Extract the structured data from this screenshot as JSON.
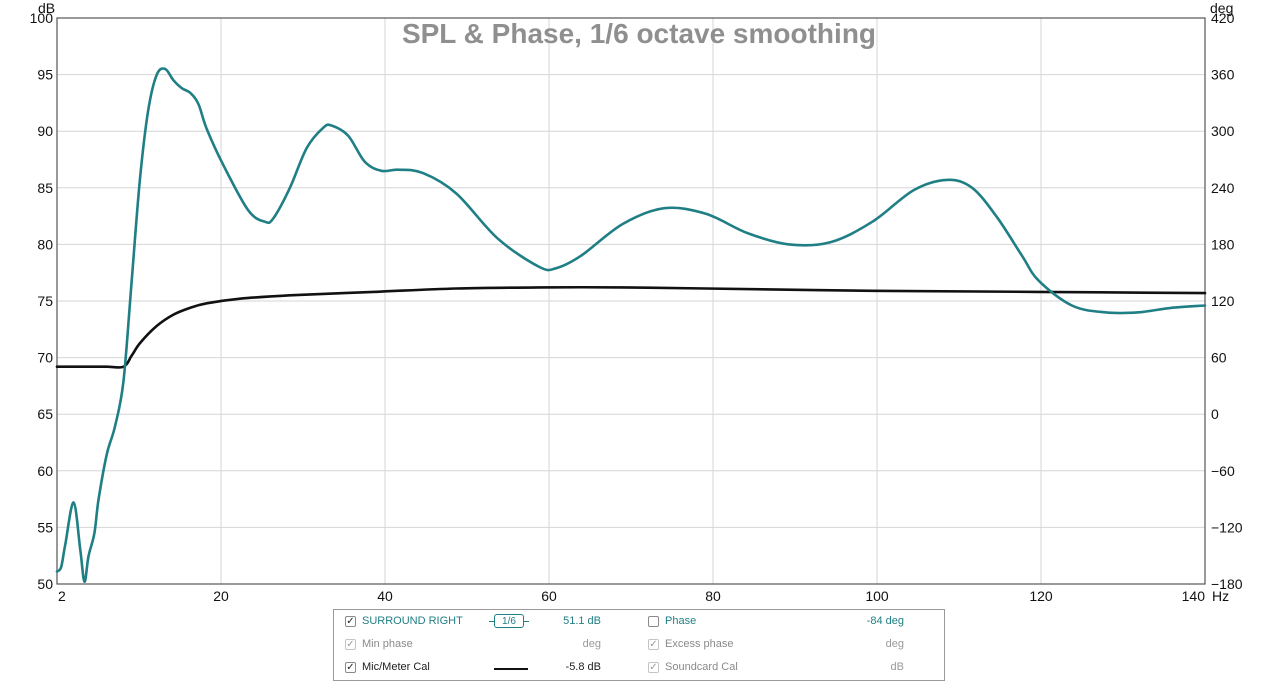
{
  "chart_data": {
    "type": "line",
    "title": "SPL & Phase, 1/6 octave smoothing",
    "xunit": "Hz",
    "xlim": [
      2,
      140
    ],
    "xticks": [
      "2",
      "20",
      "40",
      "60",
      "80",
      "100",
      "120",
      "140"
    ],
    "yunit_left": "dB",
    "ylim_left": [
      50,
      100
    ],
    "yticks_left": [
      "50",
      "55",
      "60",
      "65",
      "70",
      "75",
      "80",
      "85",
      "90",
      "95",
      "100"
    ],
    "yunit_right": "deg",
    "ylim_right": [
      -180,
      420
    ],
    "yticks_right": [
      "−180",
      "−120",
      "−60",
      "0",
      "60",
      "120",
      "180",
      "240",
      "300",
      "360",
      "420"
    ],
    "grid": true,
    "series": [
      {
        "name": "SURROUND RIGHT",
        "color": "#1f7f85",
        "axis": "left",
        "x": [
          2,
          2.5,
          3,
          4,
          4.8,
          5.3,
          5.8,
          6.5,
          7,
          8,
          9,
          10,
          11,
          12,
          13,
          14,
          15,
          16,
          17,
          18,
          19,
          20,
          22,
          25,
          27,
          28,
          30,
          32,
          34,
          35,
          37,
          39,
          41,
          43,
          46,
          50,
          55,
          60,
          62,
          65,
          70,
          75,
          80,
          85,
          90,
          95,
          100,
          105,
          109,
          112,
          115,
          118,
          120,
          124,
          128,
          132,
          136,
          140
        ],
        "y": [
          51.1,
          51.5,
          53.5,
          57.2,
          53,
          50.2,
          52.5,
          54.5,
          57.5,
          61.5,
          64,
          68,
          77,
          86,
          92,
          95,
          95.5,
          94.5,
          93.8,
          93.4,
          92.4,
          90.2,
          87,
          83,
          82,
          82.3,
          85,
          88.5,
          90.3,
          90.5,
          89.6,
          87.3,
          86.5,
          86.6,
          86.3,
          84.5,
          80.5,
          78,
          77.9,
          79,
          81.8,
          83.2,
          82.7,
          81,
          80,
          80.2,
          82,
          84.8,
          85.7,
          85,
          82.4,
          79,
          76.8,
          74.6,
          74,
          74,
          74.4,
          74.6
        ]
      },
      {
        "name": "Mic/Meter Cal",
        "color": "#111111",
        "axis": "left",
        "x": [
          2,
          4,
          6,
          8,
          10,
          11,
          12,
          14,
          16,
          18,
          20,
          24,
          30,
          40,
          50,
          60,
          70,
          80,
          100,
          120,
          140
        ],
        "y": [
          69.2,
          69.2,
          69.2,
          69.2,
          69.2,
          70.2,
          71.3,
          72.8,
          73.8,
          74.4,
          74.8,
          75.2,
          75.5,
          75.8,
          76.1,
          76.2,
          76.2,
          76.1,
          75.9,
          75.8,
          75.7
        ]
      }
    ]
  },
  "legend": {
    "rows": [
      {
        "left_checked": "✓",
        "left_label": "SURROUND RIGHT",
        "smoothing": "1/6",
        "left_value": "51.1 dB",
        "right_checked": "",
        "right_label": "Phase",
        "right_value": "-84 deg"
      },
      {
        "left_checked": "✓",
        "left_label": "Min phase",
        "left_value": "deg",
        "right_checked": "✓",
        "right_label": "Excess phase",
        "right_value": "deg"
      },
      {
        "left_checked": "✓",
        "left_label": "Mic/Meter Cal",
        "left_value": "-5.8 dB",
        "right_checked": "✓",
        "right_label": "Soundcard Cal",
        "right_value": "dB"
      }
    ]
  }
}
